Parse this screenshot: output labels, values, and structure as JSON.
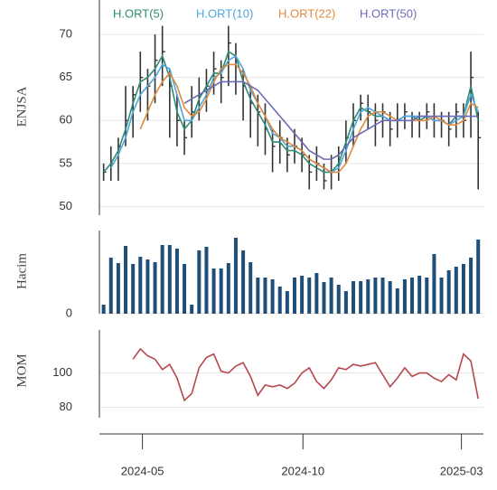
{
  "chart_data": [
    {
      "type": "stock",
      "ylabel": "ENJSA",
      "x": [
        "2024-03-25",
        "2024-04-01",
        "2024-04-08",
        "2024-04-15",
        "2024-04-22",
        "2024-04-29",
        "2024-05-06",
        "2024-05-13",
        "2024-05-20",
        "2024-05-27",
        "2024-06-03",
        "2024-06-10",
        "2024-06-17",
        "2024-06-24",
        "2024-07-01",
        "2024-07-08",
        "2024-07-15",
        "2024-07-22",
        "2024-07-29",
        "2024-08-05",
        "2024-08-12",
        "2024-08-19",
        "2024-08-26",
        "2024-09-02",
        "2024-09-09",
        "2024-09-16",
        "2024-09-23",
        "2024-09-30",
        "2024-10-07",
        "2024-10-14",
        "2024-10-21",
        "2024-10-28",
        "2024-11-04",
        "2024-11-11",
        "2024-11-18",
        "2024-11-25",
        "2024-12-02",
        "2024-12-09",
        "2024-12-16",
        "2024-12-23",
        "2024-12-30",
        "2025-01-06",
        "2025-01-13",
        "2025-01-20",
        "2025-01-27",
        "2025-02-03",
        "2025-02-10",
        "2025-02-17",
        "2025-02-24",
        "2025-03-03",
        "2025-03-10",
        "2025-03-17"
      ],
      "high": [
        55,
        57,
        58,
        64,
        64,
        68,
        66,
        70,
        71,
        66,
        63,
        60,
        64,
        65,
        66,
        68,
        67,
        71,
        69,
        66,
        64,
        63,
        62,
        59,
        60,
        58,
        59,
        58,
        56,
        57,
        55,
        56,
        57,
        60,
        62,
        63,
        63,
        62,
        62,
        61,
        62,
        62,
        61,
        61,
        62,
        62,
        61,
        61,
        62,
        62,
        68,
        61
      ],
      "low": [
        53,
        53,
        53,
        57,
        58,
        61,
        60,
        62,
        64,
        58,
        57,
        56,
        58,
        60,
        61,
        63,
        62,
        64,
        63,
        60,
        58,
        57,
        56,
        54,
        55,
        54,
        55,
        54,
        52,
        53,
        52,
        52,
        53,
        55,
        57,
        60,
        59,
        57,
        58,
        57,
        58,
        59,
        58,
        58,
        59,
        58,
        58,
        57,
        58,
        58,
        58,
        52
      ],
      "close": [
        54,
        55,
        57,
        60,
        63,
        65,
        64,
        67,
        68,
        64,
        60,
        58,
        61,
        63,
        64,
        66,
        65,
        69,
        67,
        64,
        62,
        61,
        59,
        57,
        58,
        56,
        57,
        56,
        54,
        55,
        53,
        54,
        55,
        58,
        60,
        62,
        61,
        60,
        61,
        59,
        60,
        61,
        60,
        60,
        61,
        60,
        60,
        59,
        61,
        60,
        65,
        58
      ],
      "color": "#333333",
      "series": [
        {
          "name": "H.ORT(5)",
          "color": "#2e8b74",
          "values": [
            54,
            55,
            56.5,
            59,
            62,
            64.5,
            65,
            66,
            67.5,
            65,
            61,
            59,
            60,
            62.5,
            64,
            65.5,
            65.5,
            68,
            67.5,
            64.5,
            62.5,
            61,
            59.5,
            57.5,
            57.5,
            56.5,
            56.5,
            56,
            55,
            54.5,
            54,
            54,
            55,
            57.5,
            60,
            61.5,
            61,
            60.5,
            60.5,
            60,
            60,
            60.5,
            60.5,
            60,
            60.5,
            60,
            60,
            59.5,
            60.5,
            60.5,
            64,
            60
          ]
        },
        {
          "name": "H.ORT(10)",
          "color": "#4fa6dc",
          "values": [
            null,
            54.5,
            56,
            58,
            61,
            63,
            64,
            65,
            66.5,
            66,
            63,
            60,
            60,
            61.5,
            63,
            65,
            65.5,
            67,
            67.5,
            66,
            63.5,
            62,
            60.5,
            58.5,
            58,
            57,
            57,
            56.5,
            55.5,
            55,
            54.5,
            54,
            54.5,
            56.5,
            59,
            61,
            61.5,
            61,
            60.5,
            60,
            60,
            60.5,
            60.5,
            60.5,
            60.5,
            60,
            60,
            59.5,
            60,
            60.5,
            63,
            61
          ]
        },
        {
          "name": "H.ORT(22)",
          "color": "#e08a3c",
          "values": [
            null,
            null,
            null,
            null,
            null,
            59,
            61,
            63,
            64.5,
            65.5,
            64,
            61.5,
            60.5,
            61,
            62.5,
            64.5,
            66,
            66.5,
            66.5,
            65.5,
            64,
            62,
            60.5,
            59,
            58,
            57.5,
            57,
            56.5,
            55.5,
            55,
            54.5,
            54,
            54,
            55,
            57,
            59,
            60.5,
            61,
            61,
            60.5,
            60,
            60,
            60,
            60,
            60,
            60.5,
            60,
            59.5,
            59.5,
            60,
            62,
            61.5
          ]
        },
        {
          "name": "H.ORT(50)",
          "color": "#6b6bb8",
          "values": [
            null,
            null,
            null,
            null,
            null,
            null,
            null,
            null,
            null,
            null,
            null,
            62,
            62.5,
            63,
            63.5,
            64,
            64.5,
            64.5,
            64.5,
            64.5,
            64,
            63.5,
            62.5,
            61.5,
            60.5,
            59.5,
            58.5,
            57.5,
            56.5,
            56,
            55.5,
            55.5,
            56,
            57,
            58,
            58.5,
            59,
            59.5,
            60,
            60,
            60,
            60,
            60,
            60.5,
            60.5,
            60.5,
            60.5,
            60.5,
            60.5,
            60.5,
            60.5,
            60.5
          ]
        }
      ],
      "ylim": [
        49,
        74
      ],
      "yticks": [
        50,
        55,
        60,
        65,
        70
      ],
      "grid": true
    },
    {
      "type": "bar",
      "ylabel": "Hacim",
      "color": "#1f4e79",
      "values": [
        10,
        62,
        56,
        75,
        55,
        63,
        60,
        57,
        76,
        76,
        72,
        55,
        10,
        70,
        74,
        50,
        50,
        56,
        84,
        70,
        57,
        40,
        40,
        38,
        30,
        25,
        40,
        42,
        40,
        45,
        35,
        40,
        32,
        25,
        36,
        36,
        38,
        40,
        40,
        36,
        28,
        38,
        40,
        42,
        40,
        66,
        40,
        48,
        52,
        55,
        62,
        82
      ],
      "ylim": [
        0,
        92
      ],
      "yticks": [
        0
      ],
      "grid": true
    },
    {
      "type": "line",
      "ylabel": "MOM",
      "color": "#b5474f",
      "values": [
        null,
        null,
        null,
        null,
        108,
        114,
        110,
        108,
        102,
        105,
        97,
        84,
        88,
        103,
        109,
        111,
        101,
        100,
        104,
        106,
        98,
        87,
        93,
        92,
        93,
        91,
        94,
        100,
        103,
        95,
        91,
        96,
        103,
        102,
        105,
        104,
        105,
        106,
        99,
        92,
        97,
        103,
        98,
        100,
        100,
        97,
        95,
        99,
        96,
        111,
        107,
        85
      ],
      "ylim": [
        74,
        125
      ],
      "yticks": [
        80,
        100
      ],
      "grid": true,
      "xlim": [
        "2024-03-21",
        "2025-03-22"
      ],
      "xticks": [
        {
          "value": "2024-05-01",
          "label": "2024-05"
        },
        {
          "value": "2024-10-01",
          "label": "2024-10"
        },
        {
          "value": "2025-03-01",
          "label": "2025-03"
        }
      ]
    }
  ]
}
